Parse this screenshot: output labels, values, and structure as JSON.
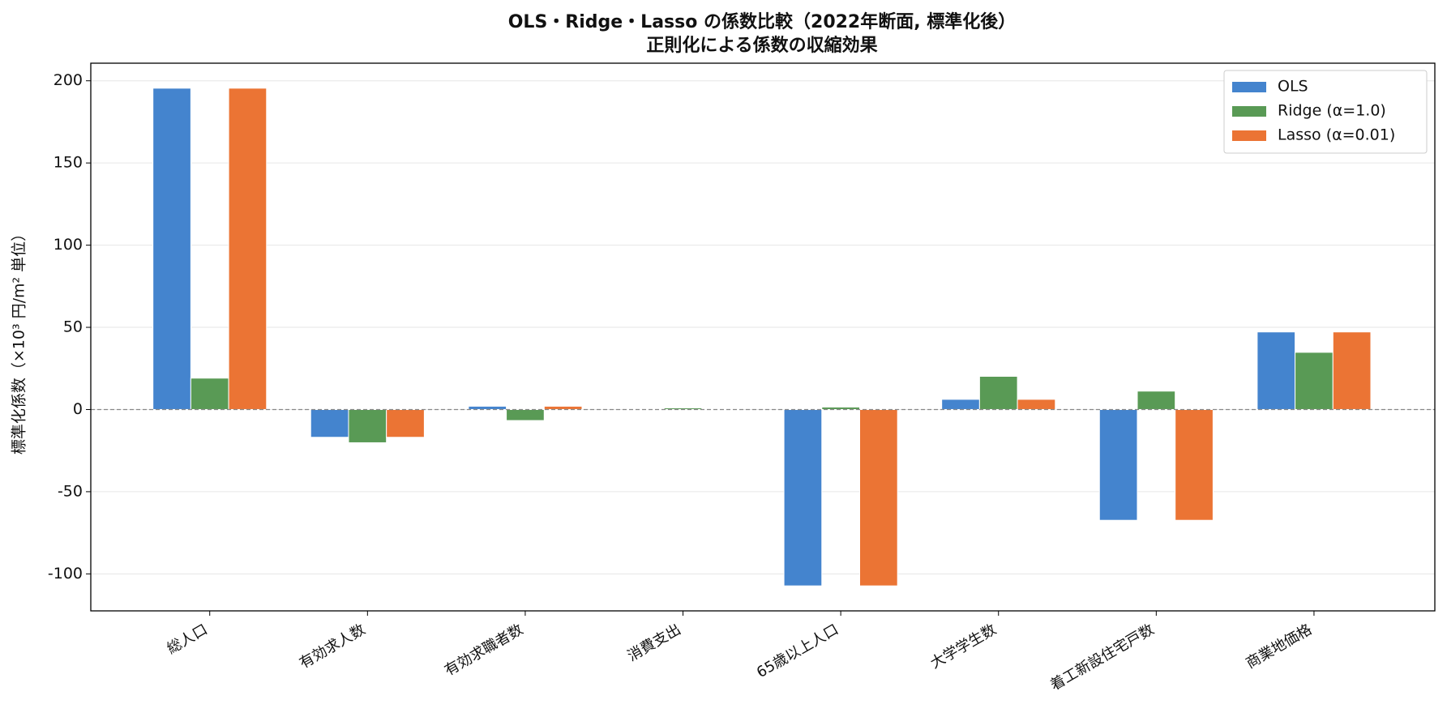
{
  "chart_data": {
    "type": "bar",
    "title": "OLS・Ridge・Lasso の係数比較（2022年断面, 標準化後）",
    "subtitle": "正則化による係数の収縮効果",
    "y_label": "標準化係数（×10³ 円/m² 単位）",
    "categories": [
      "総人口",
      "有効求人数",
      "有効求職者数",
      "消費支出",
      "65歳以上人口",
      "大学学生数",
      "着工新設住宅戸数",
      "商業地価格"
    ],
    "series": [
      {
        "name": "OLS",
        "color": "#4484ce",
        "values": [
          195.5,
          -16.9,
          2,
          0.3,
          -107.3,
          6.2,
          -67.4,
          47.2
        ]
      },
      {
        "name": "Ridge (α=1.0)",
        "color": "#599a55",
        "values": [
          19.1,
          -20.2,
          -6.7,
          1,
          1.5,
          20.2,
          11.2,
          34.8
        ]
      },
      {
        "name": "Lasso (α=0.01)",
        "color": "#eb7434",
        "values": [
          195.5,
          -16.9,
          2,
          0.3,
          -107.3,
          6.2,
          -67.4,
          47.2
        ]
      }
    ],
    "ylim": [
      -122.5,
      210.7
    ],
    "yticks": [
      -100,
      -50,
      0,
      50,
      100,
      150,
      200
    ],
    "grid": true,
    "legend": "upper right"
  }
}
